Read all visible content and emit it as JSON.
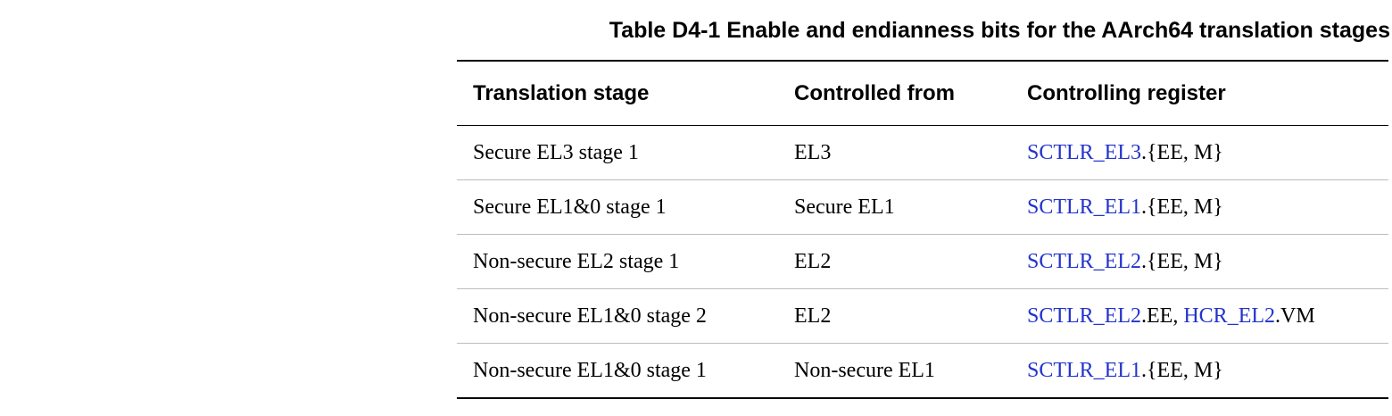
{
  "table": {
    "caption": "Table D4-1 Enable and endianness bits for the AArch64 translation stages",
    "headers": [
      "Translation stage",
      "Controlled from",
      "Controlling register"
    ],
    "rows": [
      {
        "stage": "Secure EL3 stage 1",
        "from": "EL3",
        "register": [
          {
            "text": "SCTLR_EL3",
            "link": true
          },
          {
            "text": ".{EE, M}",
            "link": false
          }
        ]
      },
      {
        "stage": "Secure EL1&0 stage 1",
        "from": "Secure EL1",
        "register": [
          {
            "text": "SCTLR_EL1",
            "link": true
          },
          {
            "text": ".{EE, M}",
            "link": false
          }
        ]
      },
      {
        "stage": "Non-secure EL2 stage 1",
        "from": "EL2",
        "register": [
          {
            "text": "SCTLR_EL2",
            "link": true
          },
          {
            "text": ".{EE, M}",
            "link": false
          }
        ]
      },
      {
        "stage": "Non-secure EL1&0 stage 2",
        "from": "EL2",
        "register": [
          {
            "text": "SCTLR_EL2",
            "link": true
          },
          {
            "text": ".EE, ",
            "link": false
          },
          {
            "text": "HCR_EL2",
            "link": true
          },
          {
            "text": ".VM",
            "link": false
          }
        ]
      },
      {
        "stage": "Non-secure EL1&0 stage 1",
        "from": "Non-secure EL1",
        "register": [
          {
            "text": "SCTLR_EL1",
            "link": true
          },
          {
            "text": ".{EE, M}",
            "link": false
          }
        ]
      }
    ]
  },
  "colors": {
    "link": "#2233cc",
    "text": "#000000",
    "row_divider": "#bdbdbd"
  }
}
